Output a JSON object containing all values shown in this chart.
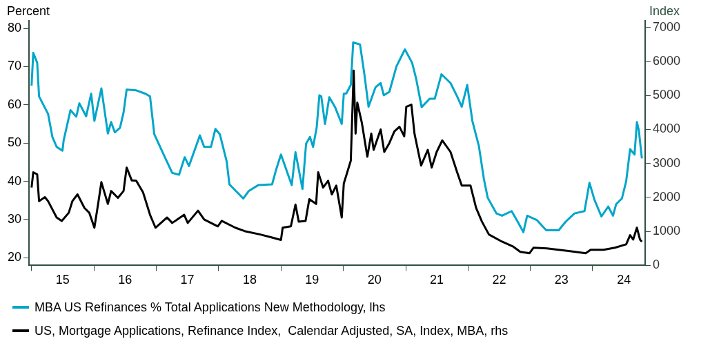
{
  "chart_data": {
    "type": "line",
    "ylabel": "Percent",
    "y2label": "Index",
    "legend": "bottom",
    "xlim": [
      "2014-12-17",
      "2024-11-03"
    ],
    "xticks": [
      {
        "value": "2015-01-01",
        "label": null
      },
      {
        "value": "2015-07-02",
        "label": "15"
      },
      {
        "value": "2016-01-01",
        "label": null
      },
      {
        "value": "2016-07-02",
        "label": "16"
      },
      {
        "value": "2017-01-01",
        "label": null
      },
      {
        "value": "2017-07-02",
        "label": "17"
      },
      {
        "value": "2018-01-01",
        "label": null
      },
      {
        "value": "2018-07-02",
        "label": "18"
      },
      {
        "value": "2019-01-01",
        "label": null
      },
      {
        "value": "2019-07-02",
        "label": "19"
      },
      {
        "value": "2020-01-01",
        "label": null
      },
      {
        "value": "2020-07-02",
        "label": "20"
      },
      {
        "value": "2021-01-01",
        "label": null
      },
      {
        "value": "2021-07-02",
        "label": "21"
      },
      {
        "value": "2022-01-01",
        "label": null
      },
      {
        "value": "2022-07-02",
        "label": "22"
      },
      {
        "value": "2023-01-01",
        "label": null
      },
      {
        "value": "2023-07-02",
        "label": "23"
      },
      {
        "value": "2024-01-01",
        "label": null
      },
      {
        "value": "2024-07-02",
        "label": "24"
      }
    ],
    "ylim": [
      18,
      82
    ],
    "yticks": [
      20,
      30,
      40,
      50,
      60,
      70,
      80
    ],
    "y2lim": [
      0,
      7200
    ],
    "y2ticks": [
      0,
      1000,
      2000,
      3000,
      4000,
      5000,
      6000,
      7000
    ],
    "series": [
      {
        "name": "MBA US Refinances % Total Applications New Methodology, lhs",
        "color": "#00a6c9",
        "x": [
          "2015-01-01",
          "2015-01-11",
          "2015-02-03",
          "2015-02-14",
          "2015-04-08",
          "2015-05-03",
          "2015-05-28",
          "2015-07-01",
          "2015-07-08",
          "2015-08-17",
          "2015-09-20",
          "2015-10-08",
          "2015-11-17",
          "2015-12-16",
          "2016-01-04",
          "2016-02-14",
          "2016-03-23",
          "2016-04-11",
          "2016-05-03",
          "2016-06-02",
          "2016-06-23",
          "2016-07-11",
          "2016-09-05",
          "2016-10-29",
          "2016-11-25",
          "2016-12-20",
          "2017-02-25",
          "2017-04-04",
          "2017-05-14",
          "2017-06-16",
          "2017-07-11",
          "2017-09-13",
          "2017-10-08",
          "2017-11-17",
          "2017-12-13",
          "2018-01-08",
          "2018-02-17",
          "2018-03-05",
          "2018-05-25",
          "2018-06-27",
          "2018-08-21",
          "2018-11-10",
          "2018-12-02",
          "2019-01-01",
          "2019-03-05",
          "2019-03-27",
          "2019-05-07",
          "2019-05-28",
          "2019-06-20",
          "2019-07-08",
          "2019-07-29",
          "2019-08-14",
          "2019-08-25",
          "2019-09-16",
          "2019-10-11",
          "2019-11-14",
          "2019-12-23",
          "2020-01-04",
          "2020-01-19",
          "2020-02-14",
          "2020-02-28",
          "2020-04-08",
          "2020-05-03",
          "2020-05-28",
          "2020-07-08",
          "2020-08-07",
          "2020-08-25",
          "2020-09-27",
          "2020-11-07",
          "2020-12-27",
          "2021-02-07",
          "2021-03-02",
          "2021-04-04",
          "2021-05-21",
          "2021-06-20",
          "2021-07-29",
          "2021-09-20",
          "2021-10-29",
          "2021-11-25",
          "2021-12-27",
          "2022-01-26",
          "2022-03-05",
          "2022-04-04",
          "2022-04-26",
          "2022-06-16",
          "2022-07-19",
          "2022-09-13",
          "2022-10-19",
          "2022-11-21",
          "2022-12-13",
          "2023-02-07",
          "2023-04-04",
          "2023-06-16",
          "2023-07-26",
          "2023-09-16",
          "2023-11-14",
          "2023-12-13",
          "2024-01-11",
          "2024-02-21",
          "2024-04-01",
          "2024-04-29",
          "2024-05-17",
          "2024-06-20",
          "2024-07-15",
          "2024-08-07",
          "2024-09-02",
          "2024-09-16",
          "2024-09-27",
          "2024-10-15"
        ],
        "values": [
          65,
          73.6,
          71,
          62.2,
          57.6,
          51.6,
          49,
          48,
          50.7,
          58.6,
          56.9,
          60.4,
          57,
          62.9,
          55.8,
          64.3,
          52.5,
          55.5,
          52.8,
          54,
          58,
          64,
          63.8,
          62.9,
          62.2,
          52.3,
          45.8,
          42.2,
          41.7,
          46.3,
          44,
          52,
          49,
          49,
          53.7,
          52.3,
          45.2,
          39.2,
          35.5,
          37.5,
          39,
          39.2,
          42.8,
          47,
          39,
          47.6,
          38,
          49.8,
          51.6,
          49,
          54,
          62.5,
          62.2,
          55,
          62,
          59.4,
          55,
          62.9,
          63,
          65.2,
          76.3,
          75.8,
          68.2,
          59.5,
          64.6,
          65.7,
          62.5,
          63.4,
          70,
          74.5,
          71,
          67,
          59.4,
          61.6,
          61.6,
          68,
          65.7,
          62.2,
          59.5,
          65.2,
          55.8,
          49.3,
          40.5,
          35.7,
          31.6,
          31,
          32.2,
          29.4,
          26.7,
          31,
          29.9,
          27.2,
          27.2,
          29.4,
          31.6,
          32.2,
          39.6,
          35.2,
          30.8,
          33.4,
          31,
          34,
          35.5,
          40,
          48.4,
          47,
          55.5,
          53.4,
          46
        ]
      },
      {
        "name": "US, Mortgage Applications, Refinance Index,  Calendar Adjusted, SA, Index, MBA, rhs",
        "color": "#000000",
        "axis": "y2",
        "x": [
          "2015-01-01",
          "2015-01-11",
          "2015-02-03",
          "2015-02-14",
          "2015-03-20",
          "2015-04-08",
          "2015-05-28",
          "2015-06-27",
          "2015-08-07",
          "2015-08-28",
          "2015-09-27",
          "2015-11-07",
          "2015-12-05",
          "2016-01-04",
          "2016-01-26",
          "2016-02-14",
          "2016-03-23",
          "2016-04-11",
          "2016-05-21",
          "2016-06-23",
          "2016-07-11",
          "2016-08-10",
          "2016-09-05",
          "2016-10-15",
          "2016-11-25",
          "2016-12-27",
          "2017-03-05",
          "2017-04-04",
          "2017-06-13",
          "2017-07-04",
          "2017-09-02",
          "2017-10-08",
          "2017-12-27",
          "2018-01-19",
          "2018-04-08",
          "2018-06-02",
          "2018-09-02",
          "2018-11-10",
          "2019-01-01",
          "2019-01-11",
          "2019-02-28",
          "2019-03-27",
          "2019-04-15",
          "2019-05-25",
          "2019-06-16",
          "2019-07-26",
          "2019-08-07",
          "2019-09-05",
          "2019-10-04",
          "2019-10-26",
          "2019-11-21",
          "2019-12-23",
          "2020-01-04",
          "2020-02-14",
          "2020-03-02",
          "2020-03-13",
          "2020-03-23",
          "2020-04-19",
          "2020-05-21",
          "2020-06-13",
          "2020-06-27",
          "2020-08-07",
          "2020-08-28",
          "2020-09-27",
          "2020-10-26",
          "2020-11-25",
          "2020-12-23",
          "2021-01-04",
          "2021-02-03",
          "2021-02-21",
          "2021-04-01",
          "2021-05-10",
          "2021-06-02",
          "2021-07-01",
          "2021-08-03",
          "2021-09-20",
          "2021-10-29",
          "2021-11-25",
          "2022-01-15",
          "2022-02-17",
          "2022-03-23",
          "2022-05-03",
          "2022-07-19",
          "2022-09-20",
          "2022-11-03",
          "2022-12-27",
          "2023-01-19",
          "2023-04-08",
          "2023-08-21",
          "2023-11-21",
          "2023-12-20",
          "2024-03-05",
          "2024-05-10",
          "2024-07-15",
          "2024-08-07",
          "2024-08-25",
          "2024-09-16",
          "2024-10-04",
          "2024-10-15"
        ],
        "values": [
          2290,
          2740,
          2680,
          1890,
          2010,
          1890,
          1410,
          1310,
          1550,
          1890,
          2090,
          1690,
          1550,
          1110,
          1810,
          2450,
          1810,
          2190,
          1990,
          2190,
          2880,
          2500,
          2490,
          2150,
          1490,
          1110,
          1410,
          1250,
          1490,
          1250,
          1610,
          1350,
          1150,
          1310,
          1110,
          1010,
          910,
          820,
          750,
          1110,
          1150,
          1790,
          1290,
          1310,
          1950,
          1810,
          2740,
          2290,
          2490,
          2090,
          2350,
          1410,
          2410,
          3080,
          5730,
          3880,
          4790,
          4190,
          3200,
          3880,
          3400,
          4000,
          3340,
          3600,
          3940,
          4080,
          3800,
          4670,
          4730,
          3880,
          2940,
          3400,
          2880,
          3340,
          3680,
          3340,
          2740,
          2350,
          2350,
          1690,
          1290,
          910,
          700,
          560,
          400,
          360,
          520,
          500,
          420,
          360,
          460,
          460,
          520,
          620,
          890,
          760,
          1110,
          760,
          700
        ]
      }
    ]
  }
}
